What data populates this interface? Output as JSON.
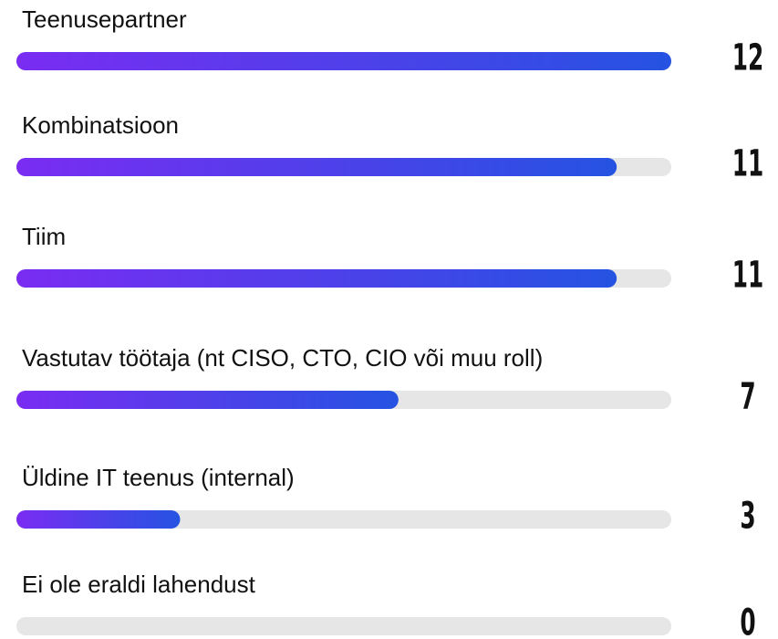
{
  "chart_data": {
    "type": "bar",
    "categories": [
      "Teenusepartner",
      "Kombinatsioon",
      "Tiim",
      "Vastutav töötaja (nt CISO, CTO, CIO või muu roll)",
      "Üldine IT teenus (internal)",
      "Ei ole eraldi lahendust"
    ],
    "values": [
      12,
      11,
      11,
      7,
      3,
      0
    ],
    "color_start": "#7a2cf2",
    "color_end": "#2553e2",
    "track_color": "#e6e6e6",
    "xlim": [
      0,
      12
    ]
  }
}
